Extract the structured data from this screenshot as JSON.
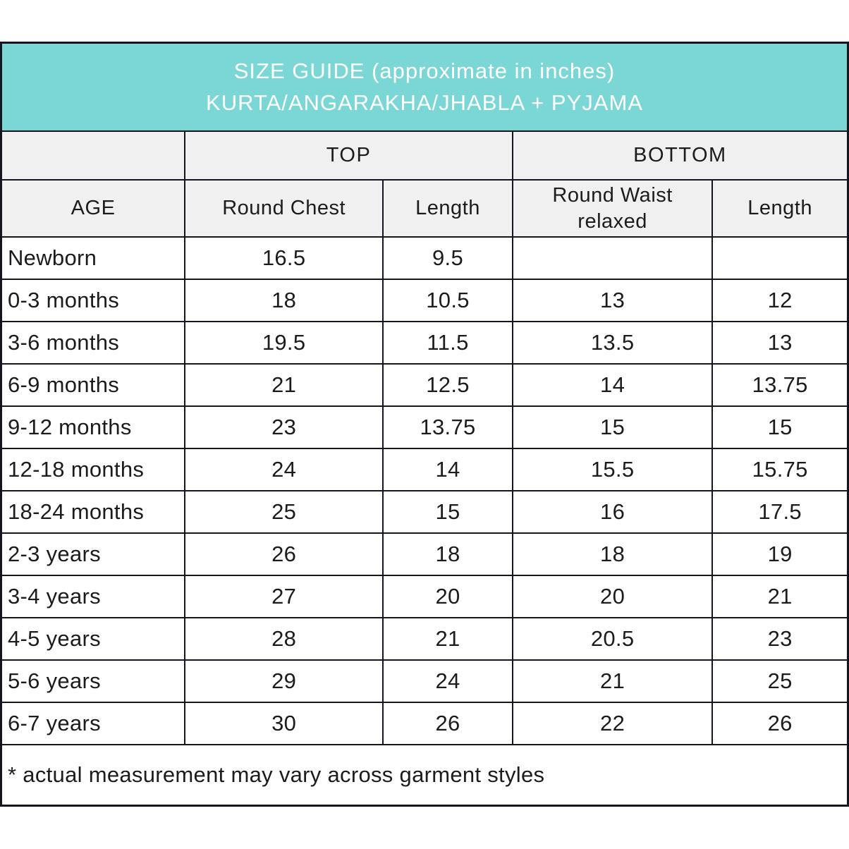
{
  "header": {
    "line1": "SIZE GUIDE (approximate in inches)",
    "line2": "KURTA/ANGARAKHA/JHABLA + PYJAMA"
  },
  "chart_data": {
    "type": "table",
    "title": "SIZE GUIDE (approximate in inches) KURTA/ANGARAKHA/JHABLA + PYJAMA",
    "units": "inches",
    "group_headers": [
      {
        "label": "TOP",
        "span": 2
      },
      {
        "label": "BOTTOM",
        "span": 2
      }
    ],
    "columns": [
      "AGE",
      "Round Chest",
      "Length",
      "Round Waist relaxed",
      "Length"
    ],
    "rows": [
      [
        "Newborn",
        "16.5",
        "9.5",
        "",
        ""
      ],
      [
        "0-3 months",
        "18",
        "10.5",
        "13",
        "12"
      ],
      [
        "3-6 months",
        "19.5",
        "11.5",
        "13.5",
        "13"
      ],
      [
        "6-9 months",
        "21",
        "12.5",
        "14",
        "13.75"
      ],
      [
        "9-12 months",
        "23",
        "13.75",
        "15",
        "15"
      ],
      [
        "12-18 months",
        "24",
        "14",
        "15.5",
        "15.75"
      ],
      [
        "18-24 months",
        "25",
        "15",
        "16",
        "17.5"
      ],
      [
        "2-3 years",
        "26",
        "18",
        "18",
        "19"
      ],
      [
        "3-4 years",
        "27",
        "20",
        "20",
        "21"
      ],
      [
        "4-5 years",
        "28",
        "21",
        "20.5",
        "23"
      ],
      [
        "5-6 years",
        "29",
        "24",
        "21",
        "25"
      ],
      [
        "6-7 years",
        "30",
        "26",
        "22",
        "26"
      ]
    ],
    "footnote": "* actual measurement may vary across garment styles"
  },
  "colors": {
    "header_background": "#7ad7d5",
    "header_text": "#ffffff",
    "column_header_background": "#f0f0f0",
    "border": "#15151f",
    "body_text": "#1c1c1c"
  }
}
